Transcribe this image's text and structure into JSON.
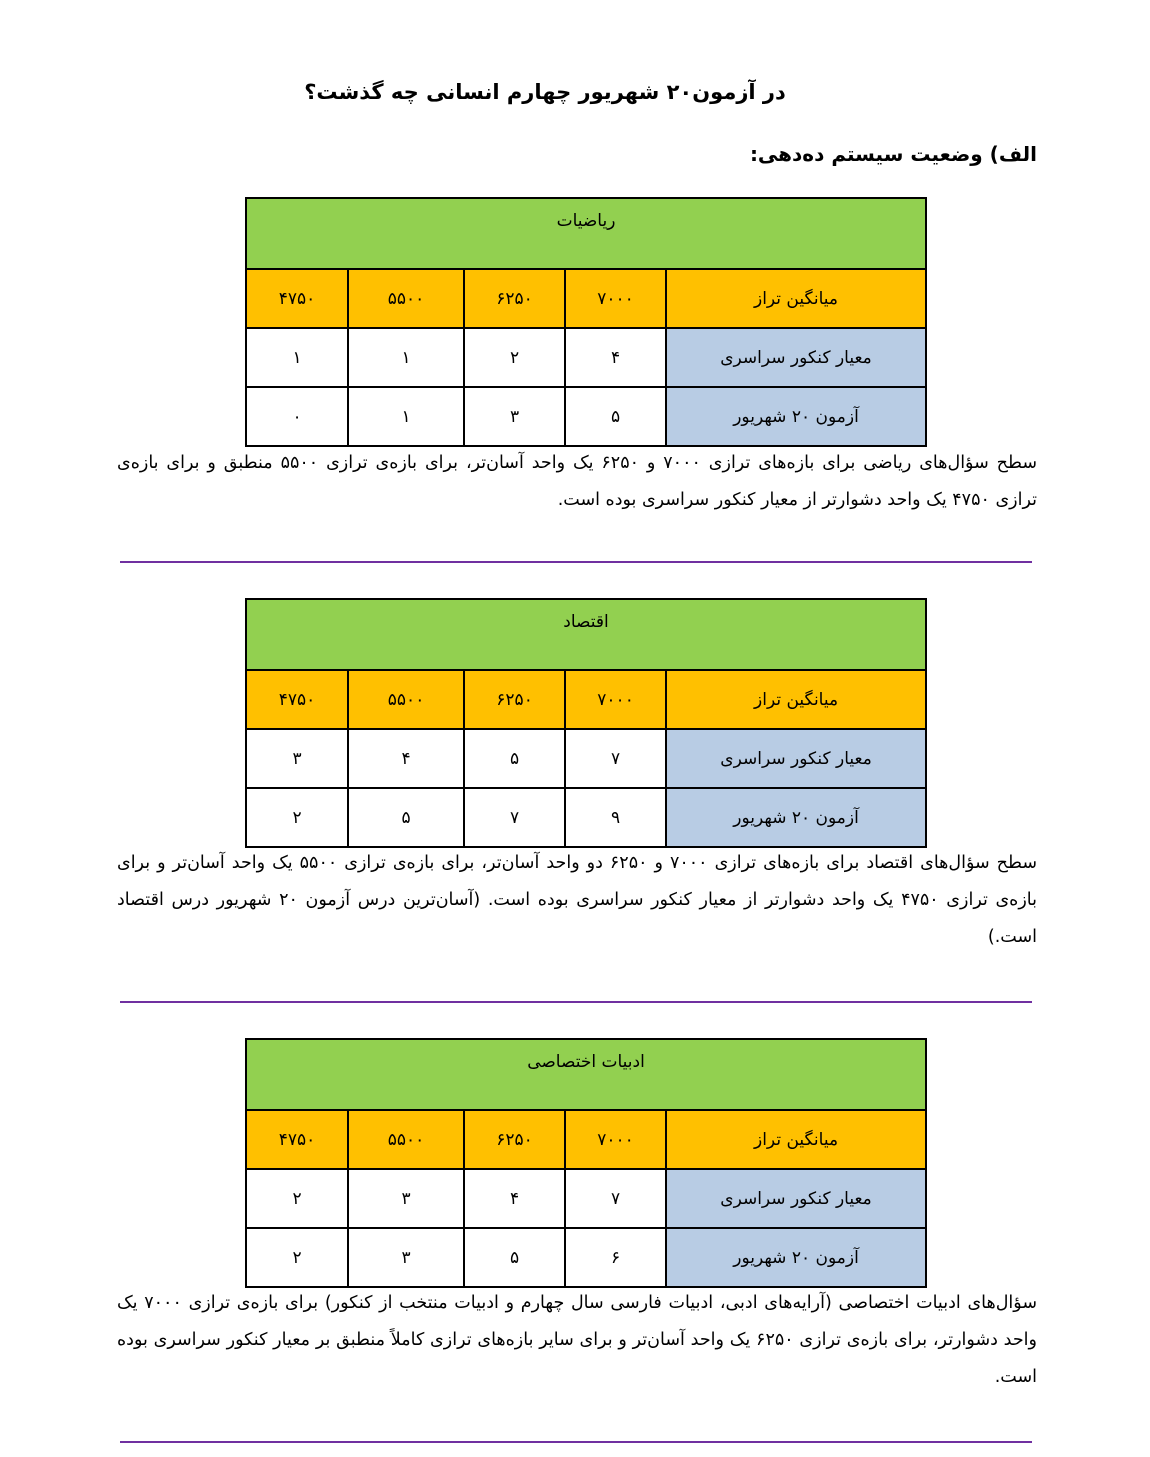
{
  "title": "در آزمون۲۰ شهریور چهارم انسانی چه گذشت؟",
  "heading": "الف) وضعیت سیستم ده‌دهی:",
  "sections": [
    {
      "subject": "ریاضیات",
      "header": [
        "میانگین تراز",
        "۷۰۰۰",
        "۶۲۵۰",
        "۵۵۰۰",
        "۴۷۵۰"
      ],
      "rows": [
        [
          "معیار کنکور سراسری",
          "۴",
          "۲",
          "۱",
          "۱"
        ],
        [
          "آزمون ۲۰ شهریور",
          "۵",
          "۳",
          "۱",
          "۰"
        ]
      ],
      "text": "سطح سؤال‌های ریاضی برای بازه‌های ترازی ۷۰۰۰ و ۶۲۵۰ یک واحد آسان‌تر، برای بازه‌ی ترازی ۵۵۰۰ منطبق و برای بازه‌ی ترازی ۴۷۵۰ یک واحد دشوارتر از معیار کنکور سراسری بوده است."
    },
    {
      "subject": "اقتصاد",
      "header": [
        "میانگین تراز",
        "۷۰۰۰",
        "۶۲۵۰",
        "۵۵۰۰",
        "۴۷۵۰"
      ],
      "rows": [
        [
          "معیار کنکور سراسری",
          "۷",
          "۵",
          "۴",
          "۳"
        ],
        [
          "آزمون ۲۰ شهریور",
          "۹",
          "۷",
          "۵",
          "۲"
        ]
      ],
      "text": "سطح سؤال‌های اقتصاد برای بازه‌های ترازی ۷۰۰۰ و ۶۲۵۰ دو واحد آسان‌تر، برای بازه‌ی ترازی ۵۵۰۰ یک واحد آسان‌تر و برای بازه‌ی ترازی ۴۷۵۰ یک واحد دشوارتر از معیار کنکور سراسری بوده است. (آسان‌ترین درس آزمون ۲۰ شهریور درس اقتصاد است.)"
    },
    {
      "subject": "ادبیات اختصاصی",
      "header": [
        "میانگین تراز",
        "۷۰۰۰",
        "۶۲۵۰",
        "۵۵۰۰",
        "۴۷۵۰"
      ],
      "rows": [
        [
          "معیار کنکور سراسری",
          "۷",
          "۴",
          "۳",
          "۲"
        ],
        [
          "آزمون ۲۰ شهریور",
          "۶",
          "۵",
          "۳",
          "۲"
        ]
      ],
      "text": "سؤال‌های ادبیات اختصاصی (آرایه‌های ادبی، ادبیات فارسی سال چهارم و ادبیات منتخب از کنکور) برای بازه‌ی ترازی ۷۰۰۰ یک واحد دشوارتر، برای بازه‌ی ترازی ۶۲۵۰ یک واحد آسان‌تر و برای سایر بازه‌های ترازی کاملاً منطبق بر معیار کنکور سراسری بوده است."
    }
  ],
  "colors": {
    "title_row": "#92d050",
    "header_row": "#ffc000",
    "label_cell": "#b8cce4",
    "rule": "#7030a0"
  }
}
